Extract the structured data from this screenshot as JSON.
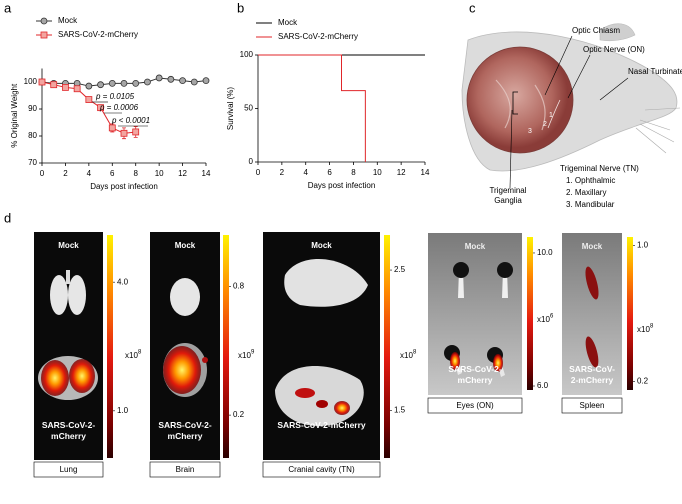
{
  "panel_labels": [
    "a",
    "b",
    "c",
    "d"
  ],
  "chart_data": [
    {
      "type": "line",
      "x_label": "Days post infection",
      "y_label": "% Original Weight",
      "xlim": [
        0,
        14
      ],
      "xticks": [
        0,
        2,
        4,
        6,
        8,
        10,
        12,
        14
      ],
      "ylim": [
        70,
        105
      ],
      "yticks": [
        70,
        80,
        90,
        100
      ],
      "series": [
        {
          "name": "Mock",
          "color": "#333333",
          "marker": "circle",
          "marker_fill": "#a6a6a6",
          "x": [
            0,
            1,
            2,
            3,
            4,
            5,
            6,
            7,
            8,
            9,
            10,
            11,
            12,
            13,
            14
          ],
          "values": [
            100,
            99.5,
            99.5,
            99.5,
            98.5,
            99,
            99.5,
            99.5,
            99.5,
            100,
            101.5,
            101,
            100.5,
            100,
            100.5
          ]
        },
        {
          "name": "SARS-CoV-2-mCherry",
          "color": "#e0262a",
          "marker": "square",
          "marker_fill": "#f2a5a0",
          "x": [
            0,
            1,
            2,
            3,
            4,
            5,
            6,
            7,
            8
          ],
          "values": [
            100,
            99,
            98,
            97.5,
            93.5,
            90.5,
            83,
            81,
            81.5
          ],
          "errors": [
            0.5,
            0.8,
            0.8,
            1,
            1,
            1,
            1.5,
            2,
            2
          ]
        }
      ],
      "annotations": [
        "p = 0.0105",
        "p = 0.0006",
        "p < 0.0001"
      ]
    },
    {
      "type": "line",
      "x_label": "Days post infection",
      "y_label": "Survival (%)",
      "xlim": [
        0,
        14
      ],
      "xticks": [
        0,
        2,
        4,
        6,
        8,
        10,
        12,
        14
      ],
      "ylim": [
        0,
        100
      ],
      "yticks": [
        0,
        50,
        100
      ],
      "series": [
        {
          "name": "Mock",
          "color": "#000000",
          "x": [
            0,
            14
          ],
          "values": [
            100,
            100
          ]
        },
        {
          "name": "SARS-CoV-2-mCherry",
          "color": "#e0262a",
          "x": [
            0,
            7,
            7,
            9,
            9
          ],
          "values": [
            100,
            100,
            66.7,
            66.7,
            0
          ]
        }
      ]
    }
  ],
  "diagram": {
    "optic_chiasm": "Optic Chiasm",
    "optic_nerve": "Optic Nerve (ON)",
    "nasal_turbinate": "Nasal Turbinate",
    "trigeminal_ganglia": "Trigeminal Ganglia",
    "trigeminal_nerve": "Trigeminal Nerve (TN)",
    "branches": [
      "1. Ophthalmic",
      "2. Maxillary",
      "3. Mandibular"
    ],
    "branch_numbers": [
      "1",
      "2",
      "3"
    ]
  },
  "imaging": [
    {
      "caption": "Lung",
      "mock_label": "Mock",
      "infected_label": "SARS-CoV-2-mCherry",
      "colorbar": {
        "lim": [
          -0.1,
          5.1
        ],
        "ticks": [
          {
            "value": 4,
            "label": "4.0"
          },
          {
            "value": 1,
            "label": "1.0"
          }
        ],
        "scale_label": "x10",
        "scale_exponent": 8
      }
    },
    {
      "caption": "Brain",
      "mock_label": "Mock",
      "infected_label": "SARS-CoV-2-mCherry",
      "colorbar": {
        "lim": [
          0,
          1.04
        ],
        "ticks": [
          0.8,
          0.2
        ],
        "scale_label": "x10",
        "scale_exponent": 9
      }
    },
    {
      "caption": "Cranial cavity (TN)",
      "mock_label": "Mock",
      "infected_label": "SARS-CoV-2-mCherry",
      "colorbar": {
        "lim": [
          1.16,
          2.75
        ],
        "ticks": [
          2.5,
          1.5
        ],
        "scale_label": "x10",
        "scale_exponent": 8
      }
    },
    {
      "caption": "Eyes (ON)",
      "mock_label": "Mock",
      "infected_label": "SARS-CoV-2-mCherry",
      "colorbar": {
        "lim": [
          5.88,
          10.48
        ],
        "ticks": [
          {
            "value": 10,
            "label": "10.0"
          },
          {
            "value": 6,
            "label": "6.0"
          }
        ],
        "scale_label": "x10",
        "scale_exponent": 6
      }
    },
    {
      "caption": "Spleen",
      "mock_label": "Mock",
      "infected_label": "SARS-CoV-2-mCherry",
      "colorbar": {
        "lim": [
          0.15,
          1.05
        ],
        "ticks": [
          {
            "value": 1,
            "label": "1.0"
          },
          0.2
        ],
        "scale_label": "x10",
        "scale_exponent": 8
      }
    }
  ]
}
